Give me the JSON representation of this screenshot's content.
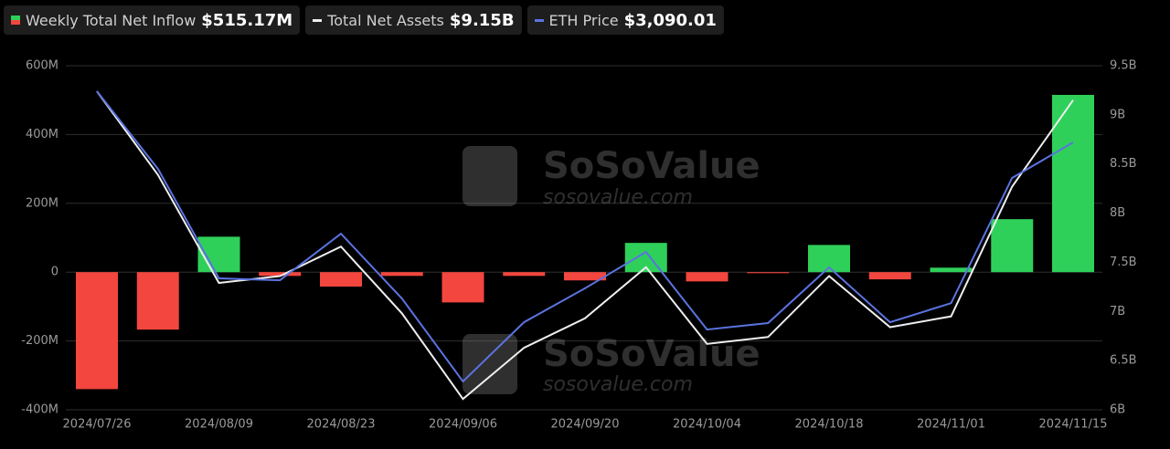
{
  "chart_data": {
    "type": "bar",
    "categories": [
      "2024/07/26",
      null,
      "2024/08/09",
      null,
      "2024/08/23",
      null,
      "2024/09/06",
      null,
      "2024/09/20",
      null,
      "2024/10/04",
      null,
      "2024/10/18",
      null,
      "2024/11/01",
      null,
      "2024/11/15"
    ],
    "series": [
      {
        "name": "Weekly Total Net Inflow",
        "type": "bar",
        "axis": "y",
        "color": "#2fd05a",
        "negative_color": "#f2463e",
        "values": [
          -340,
          -167,
          103,
          -11,
          -42,
          -11,
          -88,
          -11,
          -24,
          85,
          -27,
          -3,
          79,
          -21,
          13,
          154,
          515.17
        ]
      },
      {
        "name": "Total Net Assets",
        "type": "line",
        "axis": "y2",
        "color": "#eeeeee",
        "values": [
          9.24,
          8.39,
          7.29,
          7.36,
          7.66,
          6.98,
          6.11,
          6.63,
          6.93,
          7.45,
          6.67,
          6.74,
          7.36,
          6.84,
          6.95,
          8.27,
          9.15
        ]
      },
      {
        "name": "ETH Price",
        "type": "line",
        "color": "#5b73e0",
        "values": [
          3280,
          2992,
          2585,
          2578,
          2751,
          2510,
          2202,
          2422,
          2548,
          2683,
          2395,
          2419,
          2626,
          2422,
          2493,
          2958,
          3090.01
        ]
      }
    ],
    "legend_values": [
      "$515.17M",
      "$9.15B",
      "$3,090.01"
    ],
    "ylim": [
      -400,
      600
    ],
    "yticks": [
      {
        "value": -400,
        "label": "-400M"
      },
      {
        "value": -200,
        "label": "-200M"
      },
      0,
      {
        "value": 200,
        "label": "200M"
      },
      {
        "value": 400,
        "label": "400M"
      },
      {
        "value": 600,
        "label": "600M"
      }
    ],
    "y2lim": [
      6,
      9.5
    ],
    "y2ticks": [
      {
        "value": 6,
        "label": "6B"
      },
      {
        "value": 6.5,
        "label": "6.5B"
      },
      {
        "value": 7,
        "label": "7B"
      },
      {
        "value": 7.5,
        "label": "7.5B"
      },
      {
        "value": 8,
        "label": "8B"
      },
      {
        "value": 8.5,
        "label": "8.5B"
      },
      {
        "value": 9,
        "label": "9B"
      },
      {
        "value": 9.5,
        "label": "9.5B"
      }
    ],
    "grid": true,
    "watermark": [
      "SoSoValue",
      "sosovalue.com"
    ]
  }
}
